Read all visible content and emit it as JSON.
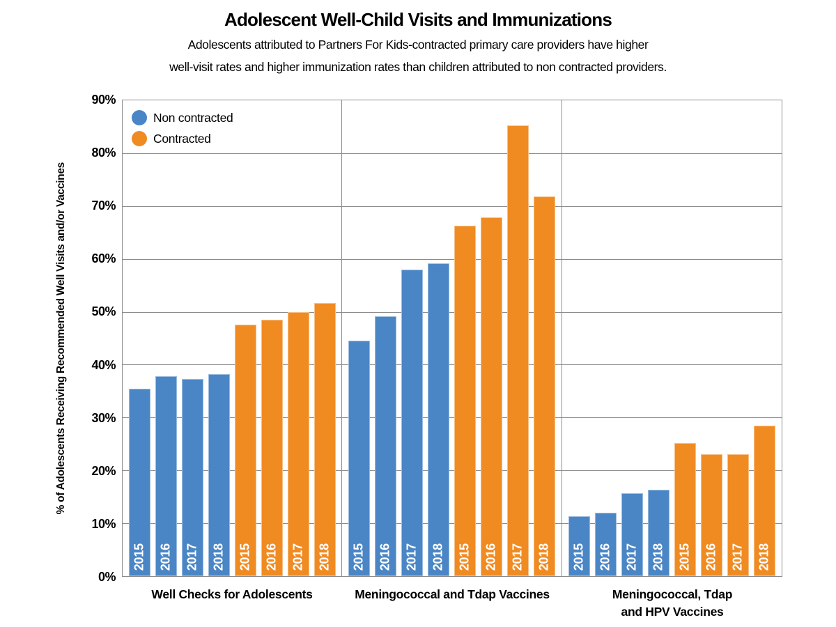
{
  "title": "Adolescent Well-Child Visits and Immunizations",
  "subtitle_line1": "Adolescents attributed to Partners For Kids-contracted primary care providers have higher",
  "subtitle_line2": "well-visit rates and higher immunization rates than children attributed to non contracted providers.",
  "colors": {
    "non_contracted_blue": "#4A86C5",
    "contracted_orange": "#F08B22",
    "grid_gray": "#8C8C8C",
    "bar_label_white": "#FFFFFF",
    "text_black": "#000000"
  },
  "chart_data": {
    "type": "bar",
    "title": "Adolescent Well-Child Visits and Immunizations",
    "xlabel": "",
    "ylabel": "% of Adolescents Receiving Recommended Well Visits and/or Vaccines",
    "ylim": [
      0,
      90
    ],
    "ytick_step": 10,
    "ytick_suffix": "%",
    "grid": true,
    "legend_position": "top-left-inside",
    "bar_year_labels": [
      "2015",
      "2016",
      "2017",
      "2018"
    ],
    "series": [
      {
        "name": "Non contracted",
        "color": "#4A86C5"
      },
      {
        "name": "Contracted",
        "color": "#F08B22"
      }
    ],
    "groups": [
      {
        "label_lines": [
          "Well Checks for Adolescents"
        ],
        "values": {
          "Non contracted": [
            35.4,
            37.8,
            37.3,
            38.2
          ],
          "Contracted": [
            47.6,
            48.5,
            50.0,
            51.7
          ]
        }
      },
      {
        "label_lines": [
          "Meningococcal and Tdap Vaccines"
        ],
        "values": {
          "Non contracted": [
            44.5,
            49.2,
            58.0,
            59.2
          ],
          "Contracted": [
            66.3,
            67.8,
            85.3,
            71.8
          ]
        }
      },
      {
        "label_lines": [
          "Meningococcal, Tdap",
          "and HPV Vaccines"
        ],
        "values": {
          "Non contracted": [
            11.3,
            12.0,
            15.7,
            16.4
          ],
          "Contracted": [
            25.2,
            23.0,
            23.0,
            28.4
          ]
        }
      }
    ]
  }
}
